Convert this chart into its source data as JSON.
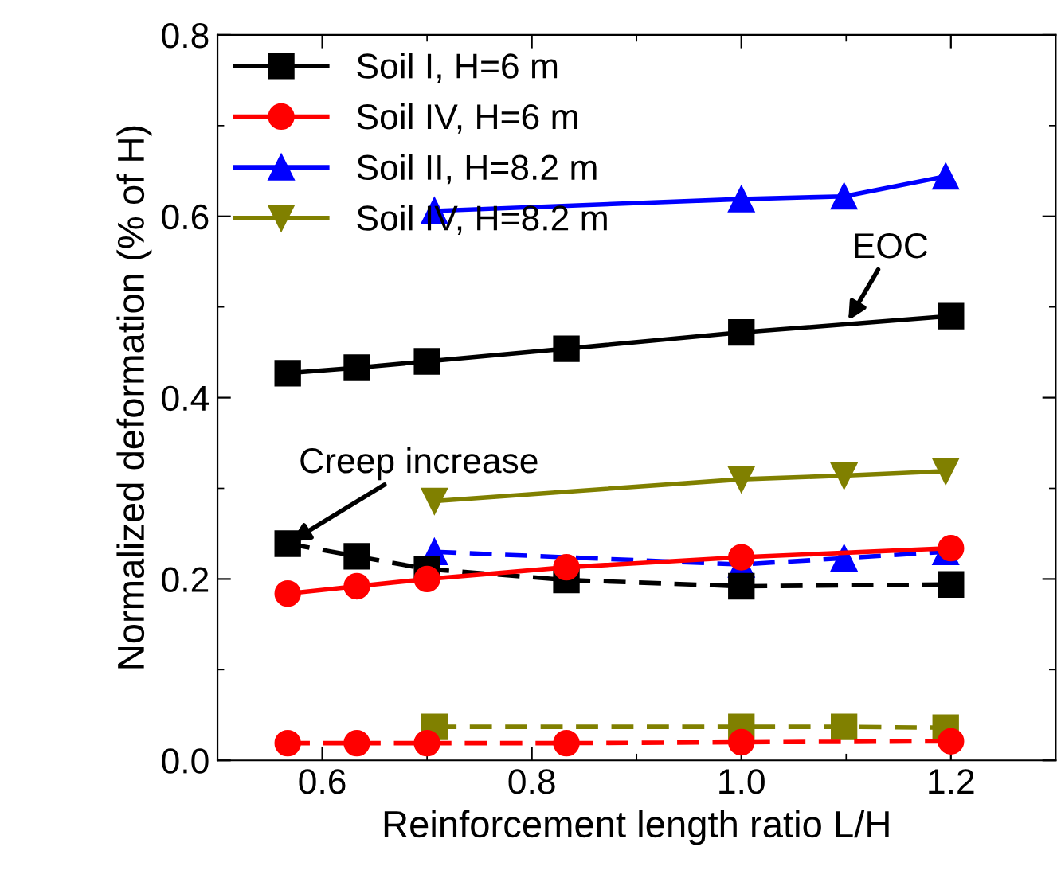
{
  "chart_data": {
    "type": "line",
    "xlabel": "Reinforcement length ratio L/H",
    "ylabel": "Normalized deformation (% of H)",
    "series": [
      {
        "name": "Soil I, H=6 m",
        "color": "#000000",
        "marker": "square",
        "line_style": "solid",
        "x": [
          0.567,
          0.633,
          0.7,
          0.833,
          1.0,
          1.2
        ],
        "values": [
          0.427,
          0.433,
          0.44,
          0.454,
          0.472,
          0.49
        ]
      },
      {
        "name": "Soil IV, H=6 m",
        "color": "#ff0000",
        "marker": "circle",
        "line_style": "solid",
        "x": [
          0.567,
          0.633,
          0.7,
          0.833,
          1.0,
          1.2
        ],
        "values": [
          0.184,
          0.192,
          0.2,
          0.213,
          0.224,
          0.234
        ]
      },
      {
        "name": "Soil II, H=8.2 m",
        "color": "#0000ff",
        "marker": "triangle",
        "line_style": "solid",
        "x": [
          0.707,
          1.0,
          1.098,
          1.195
        ],
        "values": [
          0.606,
          0.619,
          0.622,
          0.644
        ]
      },
      {
        "name": "Soil IV, H=8.2 m",
        "color": "#808000",
        "marker": "triangle_down",
        "line_style": "solid",
        "x": [
          0.707,
          1.0,
          1.098,
          1.195
        ],
        "values": [
          0.286,
          0.31,
          0.314,
          0.319
        ]
      },
      {
        "color": "#000000",
        "marker": "square",
        "line_style": "dashed",
        "x": [
          0.567,
          0.633,
          0.7,
          0.833,
          1.0,
          1.2
        ],
        "values": [
          0.239,
          0.225,
          0.211,
          0.199,
          0.192,
          0.194
        ]
      },
      {
        "color": "#ff0000",
        "marker": "circle",
        "line_style": "dashed",
        "x": [
          0.567,
          0.633,
          0.7,
          0.833,
          1.0,
          1.2
        ],
        "values": [
          0.019,
          0.019,
          0.019,
          0.019,
          0.02,
          0.021
        ]
      },
      {
        "color": "#0000ff",
        "marker": "triangle",
        "line_style": "dashed",
        "x": [
          0.707,
          1.0,
          1.098,
          1.195
        ],
        "values": [
          0.23,
          0.216,
          0.223,
          0.23
        ]
      },
      {
        "color": "#808000",
        "marker": "square",
        "line_style": "dashed",
        "x": [
          0.707,
          1.0,
          1.098,
          1.195
        ],
        "values": [
          0.037,
          0.037,
          0.037,
          0.036
        ]
      }
    ],
    "xlim": [
      0.5,
      1.3
    ],
    "xticks": [
      {
        "value": 0.6,
        "label": "0.6"
      },
      {
        "value": 0.7,
        "label": null
      },
      {
        "value": 0.8,
        "label": "0.8"
      },
      {
        "value": 0.9,
        "label": null
      },
      {
        "value": 1.0,
        "label": "1.0"
      },
      {
        "value": 1.1,
        "label": null
      },
      {
        "value": 1.2,
        "label": "1.2"
      }
    ],
    "ylim": [
      0,
      0.8
    ],
    "yticks": [
      {
        "value": 0,
        "label": "0.0"
      },
      {
        "value": 0.1,
        "label": null
      },
      {
        "value": 0.2,
        "label": "0.2"
      },
      {
        "value": 0.3,
        "label": null
      },
      {
        "value": 0.4,
        "label": "0.4"
      },
      {
        "value": 0.5,
        "label": null
      },
      {
        "value": 0.6,
        "label": "0.6"
      },
      {
        "value": 0.7,
        "label": null
      },
      {
        "value": 0.8,
        "label": "0.8"
      }
    ],
    "annotations": [
      {
        "text": "EOC",
        "x": 1.1,
        "y": 0.481
      },
      {
        "text": "Creep increase",
        "x": 0.567,
        "y": 0.239
      }
    ],
    "legend": "top left",
    "grid": false
  }
}
